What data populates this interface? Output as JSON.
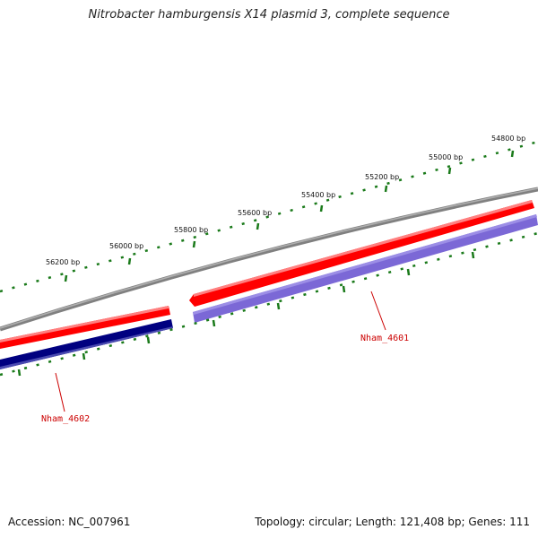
{
  "title": "Nitrobacter hamburgensis X14 plasmid 3, complete sequence",
  "footer": {
    "accession": "Accession: NC_007961",
    "summary": "Topology: circular; Length: 121,408 bp; Genes: 111"
  },
  "scale": {
    "labels": [
      "54800 bp",
      "55000 bp",
      "55200 bp",
      "55400 bp",
      "55600 bp",
      "55800 bp",
      "56000 bp",
      "56200 bp"
    ]
  },
  "genes": [
    {
      "name": "Nham_4601"
    },
    {
      "name": "Nham_4602"
    }
  ],
  "colors": {
    "backbone": "#808080",
    "forward_strand": "#ff0000",
    "reverse_strand_a": "#7b68d6",
    "reverse_strand_b": "#000080",
    "ticks": "#1a7a1a",
    "gene_label": "#cc0000"
  }
}
